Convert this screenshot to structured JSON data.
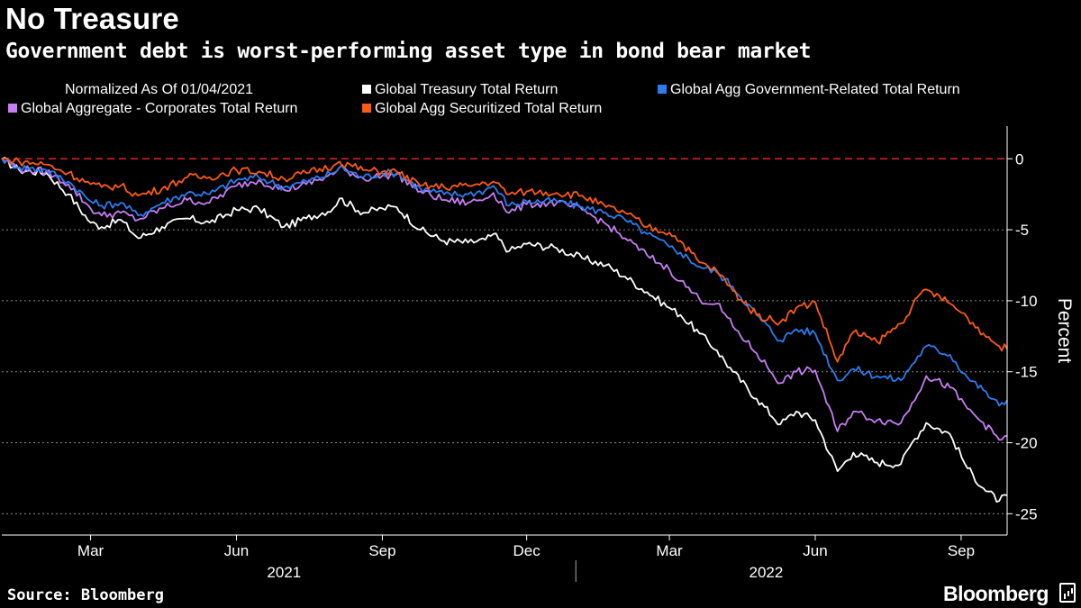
{
  "header": {
    "title": "No Treasure",
    "subtitle": "Government debt is worst-performing asset type in bond bear market"
  },
  "legend": {
    "note": "Normalized As Of 01/04/2021"
  },
  "footer": {
    "source": "Source: Bloomberg",
    "brand": "Bloomberg"
  },
  "colors": {
    "treasury": "#ffffff",
    "government_related": "#2b7cf0",
    "corporates": "#c77df3",
    "securitized": "#ff5a12",
    "reference_line": "#e0242e",
    "grid": "#8a8a8a"
  },
  "chart_data": {
    "type": "line",
    "ylabel": "Percent",
    "xlabel": "",
    "ylim": [
      -26.5,
      2.3
    ],
    "yticks": [
      0,
      -5,
      -10,
      -15,
      -20,
      -25
    ],
    "x_start": "2021-01-04",
    "x_end": "2022-09-30",
    "x_ticks": [
      {
        "date": "2021-03-01",
        "label": "Mar"
      },
      {
        "date": "2021-06-01",
        "label": "Jun"
      },
      {
        "date": "2021-09-01",
        "label": "Sep"
      },
      {
        "date": "2021-12-01",
        "label": "Dec"
      },
      {
        "date": "2022-03-01",
        "label": "Mar"
      },
      {
        "date": "2022-06-01",
        "label": "Jun"
      },
      {
        "date": "2022-09-01",
        "label": "Sep"
      }
    ],
    "year_labels": [
      {
        "date": "2021-07-01",
        "label": "2021"
      },
      {
        "date": "2022-05-01",
        "label": "2022"
      }
    ],
    "year_separator": "2022-01-01",
    "reference_line": 0,
    "grid": true,
    "legend_position": "top",
    "series": [
      {
        "name": "Global Treasury Total Return",
        "color": "#ffffff",
        "points": [
          [
            "2021-01-04",
            0
          ],
          [
            "2021-01-15",
            -0.8
          ],
          [
            "2021-02-01",
            -1.0
          ],
          [
            "2021-02-15",
            -2.5
          ],
          [
            "2021-03-01",
            -4.5
          ],
          [
            "2021-03-08",
            -4.8
          ],
          [
            "2021-03-20",
            -4.3
          ],
          [
            "2021-03-31",
            -5.6
          ],
          [
            "2021-04-15",
            -4.8
          ],
          [
            "2021-05-01",
            -4.2
          ],
          [
            "2021-05-15",
            -4.5
          ],
          [
            "2021-06-01",
            -3.6
          ],
          [
            "2021-06-15",
            -3.5
          ],
          [
            "2021-07-01",
            -4.8
          ],
          [
            "2021-07-15",
            -4.2
          ],
          [
            "2021-08-01",
            -3.5
          ],
          [
            "2021-08-05",
            -2.8
          ],
          [
            "2021-08-20",
            -3.8
          ],
          [
            "2021-09-01",
            -3.5
          ],
          [
            "2021-09-10",
            -3.4
          ],
          [
            "2021-09-25",
            -5.0
          ],
          [
            "2021-10-10",
            -5.8
          ],
          [
            "2021-10-25",
            -5.9
          ],
          [
            "2021-11-05",
            -5.7
          ],
          [
            "2021-11-10",
            -5.3
          ],
          [
            "2021-11-20",
            -6.5
          ],
          [
            "2021-12-01",
            -6.0
          ],
          [
            "2021-12-20",
            -6.3
          ],
          [
            "2022-01-05",
            -7.0
          ],
          [
            "2022-01-20",
            -7.5
          ],
          [
            "2022-02-01",
            -8.3
          ],
          [
            "2022-02-15",
            -9.4
          ],
          [
            "2022-03-01",
            -10.5
          ],
          [
            "2022-03-08",
            -11.0
          ],
          [
            "2022-03-20",
            -12.3
          ],
          [
            "2022-03-31",
            -13.5
          ],
          [
            "2022-04-10",
            -15.0
          ],
          [
            "2022-04-25",
            -16.9
          ],
          [
            "2022-05-10",
            -18.7
          ],
          [
            "2022-05-20",
            -17.8
          ],
          [
            "2022-06-01",
            -18.4
          ],
          [
            "2022-06-15",
            -22.0
          ],
          [
            "2022-06-25",
            -20.7
          ],
          [
            "2022-07-10",
            -21.4
          ],
          [
            "2022-07-25",
            -21.5
          ],
          [
            "2022-08-01",
            -20.0
          ],
          [
            "2022-08-10",
            -18.6
          ],
          [
            "2022-08-25",
            -19.4
          ],
          [
            "2022-09-05",
            -21.8
          ],
          [
            "2022-09-15",
            -23.2
          ],
          [
            "2022-09-25",
            -24.1
          ],
          [
            "2022-09-30",
            -23.7
          ]
        ]
      },
      {
        "name": "Global Agg Government-Related Total Return",
        "color": "#2b7cf0",
        "points": [
          [
            "2021-01-04",
            0
          ],
          [
            "2021-01-15",
            -0.6
          ],
          [
            "2021-02-01",
            -0.8
          ],
          [
            "2021-02-15",
            -1.6
          ],
          [
            "2021-03-01",
            -3.0
          ],
          [
            "2021-03-08",
            -3.3
          ],
          [
            "2021-03-20",
            -3.1
          ],
          [
            "2021-03-31",
            -4.0
          ],
          [
            "2021-04-15",
            -3.1
          ],
          [
            "2021-05-01",
            -2.4
          ],
          [
            "2021-05-15",
            -2.5
          ],
          [
            "2021-06-01",
            -1.5
          ],
          [
            "2021-06-15",
            -1.3
          ],
          [
            "2021-07-01",
            -2.0
          ],
          [
            "2021-07-15",
            -1.6
          ],
          [
            "2021-08-01",
            -1.0
          ],
          [
            "2021-08-05",
            -0.6
          ],
          [
            "2021-08-20",
            -1.3
          ],
          [
            "2021-09-01",
            -1.0
          ],
          [
            "2021-09-10",
            -1.0
          ],
          [
            "2021-09-25",
            -2.1
          ],
          [
            "2021-10-10",
            -2.5
          ],
          [
            "2021-10-25",
            -2.5
          ],
          [
            "2021-11-05",
            -2.2
          ],
          [
            "2021-11-10",
            -1.9
          ],
          [
            "2021-11-20",
            -3.3
          ],
          [
            "2021-12-01",
            -3.0
          ],
          [
            "2021-12-20",
            -3.0
          ],
          [
            "2022-01-05",
            -3.4
          ],
          [
            "2022-01-20",
            -3.8
          ],
          [
            "2022-02-01",
            -4.3
          ],
          [
            "2022-02-15",
            -5.3
          ],
          [
            "2022-03-01",
            -6.2
          ],
          [
            "2022-03-08",
            -6.6
          ],
          [
            "2022-03-20",
            -7.6
          ],
          [
            "2022-03-31",
            -8.0
          ],
          [
            "2022-04-10",
            -9.0
          ],
          [
            "2022-04-25",
            -11.0
          ],
          [
            "2022-05-10",
            -12.8
          ],
          [
            "2022-05-20",
            -12.0
          ],
          [
            "2022-06-01",
            -12.3
          ],
          [
            "2022-06-15",
            -15.6
          ],
          [
            "2022-06-25",
            -14.8
          ],
          [
            "2022-07-10",
            -15.3
          ],
          [
            "2022-07-25",
            -15.6
          ],
          [
            "2022-08-01",
            -14.5
          ],
          [
            "2022-08-10",
            -13.2
          ],
          [
            "2022-08-25",
            -13.8
          ],
          [
            "2022-09-05",
            -15.4
          ],
          [
            "2022-09-15",
            -16.3
          ],
          [
            "2022-09-25",
            -17.4
          ],
          [
            "2022-09-30",
            -17.0
          ]
        ]
      },
      {
        "name": "Global Aggregate - Corporates Total Return",
        "color": "#c77df3",
        "points": [
          [
            "2021-01-04",
            0
          ],
          [
            "2021-01-15",
            -0.7
          ],
          [
            "2021-02-01",
            -0.9
          ],
          [
            "2021-02-15",
            -1.8
          ],
          [
            "2021-03-01",
            -3.5
          ],
          [
            "2021-03-08",
            -4.0
          ],
          [
            "2021-03-20",
            -3.8
          ],
          [
            "2021-03-31",
            -4.3
          ],
          [
            "2021-04-15",
            -3.5
          ],
          [
            "2021-05-01",
            -2.9
          ],
          [
            "2021-05-15",
            -3.1
          ],
          [
            "2021-06-01",
            -1.9
          ],
          [
            "2021-06-15",
            -1.5
          ],
          [
            "2021-07-01",
            -2.2
          ],
          [
            "2021-07-15",
            -1.8
          ],
          [
            "2021-08-01",
            -1.1
          ],
          [
            "2021-08-05",
            -0.6
          ],
          [
            "2021-08-20",
            -1.4
          ],
          [
            "2021-09-01",
            -1.2
          ],
          [
            "2021-09-10",
            -1.1
          ],
          [
            "2021-09-25",
            -2.3
          ],
          [
            "2021-10-10",
            -2.9
          ],
          [
            "2021-10-25",
            -3.1
          ],
          [
            "2021-11-05",
            -2.8
          ],
          [
            "2021-11-10",
            -2.4
          ],
          [
            "2021-11-20",
            -3.8
          ],
          [
            "2021-12-01",
            -3.2
          ],
          [
            "2021-12-20",
            -3.1
          ],
          [
            "2022-01-05",
            -3.6
          ],
          [
            "2022-01-20",
            -4.6
          ],
          [
            "2022-02-01",
            -5.6
          ],
          [
            "2022-02-15",
            -6.8
          ],
          [
            "2022-03-01",
            -7.8
          ],
          [
            "2022-03-08",
            -8.6
          ],
          [
            "2022-03-20",
            -9.9
          ],
          [
            "2022-03-31",
            -10.2
          ],
          [
            "2022-04-10",
            -11.8
          ],
          [
            "2022-04-25",
            -13.7
          ],
          [
            "2022-05-10",
            -15.8
          ],
          [
            "2022-05-20",
            -15.0
          ],
          [
            "2022-06-01",
            -14.9
          ],
          [
            "2022-06-15",
            -19.2
          ],
          [
            "2022-06-25",
            -17.8
          ],
          [
            "2022-07-10",
            -18.4
          ],
          [
            "2022-07-25",
            -18.6
          ],
          [
            "2022-08-01",
            -17.2
          ],
          [
            "2022-08-10",
            -15.3
          ],
          [
            "2022-08-25",
            -16.1
          ],
          [
            "2022-09-05",
            -17.6
          ],
          [
            "2022-09-15",
            -18.6
          ],
          [
            "2022-09-25",
            -19.8
          ],
          [
            "2022-09-30",
            -19.5
          ]
        ]
      },
      {
        "name": "Global Agg Securitized Total Return",
        "color": "#ff5a12",
        "points": [
          [
            "2021-01-04",
            0
          ],
          [
            "2021-01-15",
            -0.2
          ],
          [
            "2021-02-01",
            -0.4
          ],
          [
            "2021-02-15",
            -1.0
          ],
          [
            "2021-03-01",
            -1.8
          ],
          [
            "2021-03-08",
            -2.0
          ],
          [
            "2021-03-20",
            -1.9
          ],
          [
            "2021-03-31",
            -2.6
          ],
          [
            "2021-04-15",
            -2.1
          ],
          [
            "2021-05-01",
            -1.3
          ],
          [
            "2021-05-15",
            -1.3
          ],
          [
            "2021-06-01",
            -0.8
          ],
          [
            "2021-06-15",
            -0.9
          ],
          [
            "2021-07-01",
            -1.4
          ],
          [
            "2021-07-15",
            -1.0
          ],
          [
            "2021-08-01",
            -0.5
          ],
          [
            "2021-08-05",
            -0.2
          ],
          [
            "2021-08-20",
            -0.8
          ],
          [
            "2021-09-01",
            -0.9
          ],
          [
            "2021-09-10",
            -0.9
          ],
          [
            "2021-09-25",
            -1.9
          ],
          [
            "2021-10-10",
            -2.0
          ],
          [
            "2021-10-25",
            -1.9
          ],
          [
            "2021-11-05",
            -1.7
          ],
          [
            "2021-11-10",
            -1.6
          ],
          [
            "2021-11-20",
            -2.5
          ],
          [
            "2021-12-01",
            -2.3
          ],
          [
            "2021-12-20",
            -2.4
          ],
          [
            "2022-01-05",
            -2.6
          ],
          [
            "2022-01-20",
            -3.4
          ],
          [
            "2022-02-01",
            -3.8
          ],
          [
            "2022-02-15",
            -4.8
          ],
          [
            "2022-03-01",
            -5.2
          ],
          [
            "2022-03-08",
            -5.8
          ],
          [
            "2022-03-20",
            -7.3
          ],
          [
            "2022-03-31",
            -7.9
          ],
          [
            "2022-04-10",
            -9.3
          ],
          [
            "2022-04-25",
            -11.0
          ],
          [
            "2022-05-10",
            -11.5
          ],
          [
            "2022-05-20",
            -10.5
          ],
          [
            "2022-06-01",
            -10.1
          ],
          [
            "2022-06-15",
            -14.3
          ],
          [
            "2022-06-25",
            -12.2
          ],
          [
            "2022-07-10",
            -12.9
          ],
          [
            "2022-07-25",
            -11.6
          ],
          [
            "2022-08-01",
            -10.4
          ],
          [
            "2022-08-10",
            -9.2
          ],
          [
            "2022-08-25",
            -10.2
          ],
          [
            "2022-09-05",
            -11.2
          ],
          [
            "2022-09-15",
            -12.3
          ],
          [
            "2022-09-25",
            -13.2
          ],
          [
            "2022-09-30",
            -13.4
          ]
        ]
      }
    ]
  }
}
